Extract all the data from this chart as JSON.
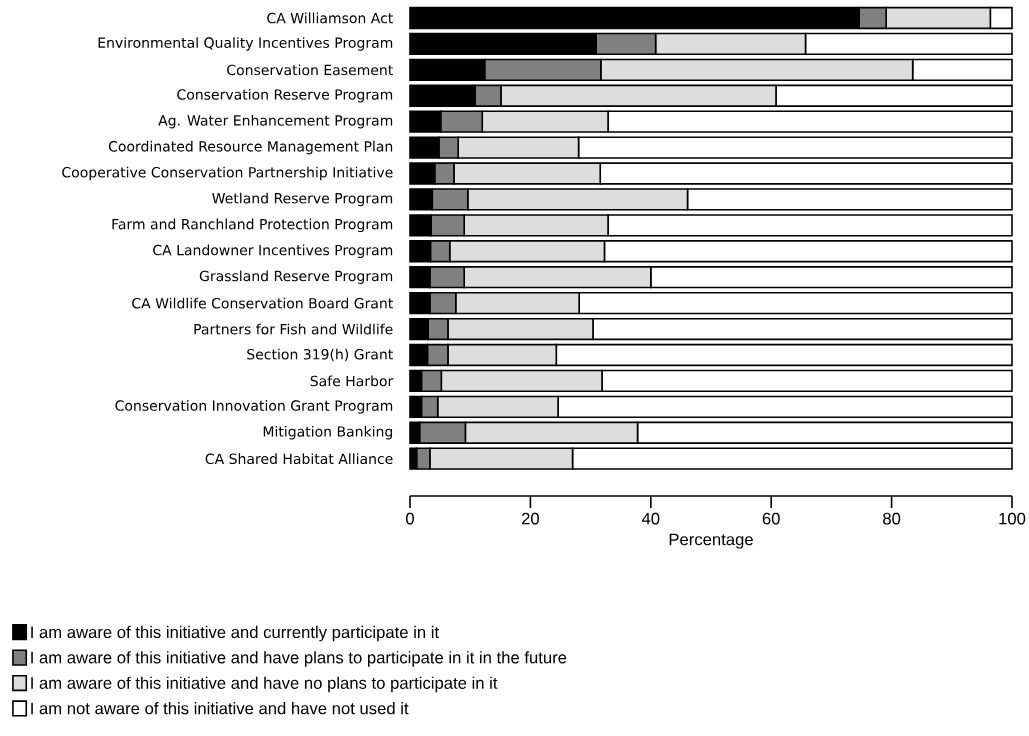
{
  "chart_data": {
    "type": "bar",
    "orientation": "horizontal",
    "stacked": true,
    "xlabel": "Percentage",
    "categories": [
      "CA Williamson Act",
      "Environmental Quality Incentives Program",
      "Conservation Easement",
      "Conservation Reserve Program",
      "Ag. Water Enhancement Program",
      "Coordinated Resource Management Plan",
      "Cooperative Conservation Partnership Initiative",
      "Wetland Reserve Program",
      "Farm and Ranchland Protection Program",
      "CA Landowner Incentives Program",
      "Grassland Reserve Program",
      "CA Wildlife Conservation Board Grant",
      "Partners for Fish and Wildlife",
      "Section 319(h) Grant",
      "Safe Harbor",
      "Conservation Innovation Grant Program",
      "Mitigation Banking",
      "CA Shared Habitat Alliance"
    ],
    "series": [
      {
        "name": "I am aware of this initiative and currently participate in it",
        "color": "#000000",
        "values": [
          74.6,
          30.9,
          12.4,
          10.8,
          5.1,
          4.8,
          4.1,
          3.7,
          3.5,
          3.4,
          3.3,
          3.3,
          3.0,
          2.9,
          1.9,
          1.9,
          1.6,
          1.1
        ]
      },
      {
        "name": "I am aware of this initiative and have plans to participate in it in the future",
        "color": "#808080",
        "values": [
          4.5,
          9.9,
          19.3,
          4.3,
          6.9,
          3.2,
          3.2,
          5.9,
          5.5,
          3.2,
          5.7,
          4.3,
          3.3,
          3.4,
          3.3,
          2.7,
          7.6,
          2.2
        ]
      },
      {
        "name": "I am aware of this initiative and have no plans to participate in it",
        "color": "#dddddd",
        "values": [
          17.3,
          24.9,
          51.8,
          45.7,
          20.9,
          20.0,
          24.3,
          36.5,
          23.9,
          25.7,
          31.0,
          20.5,
          24.1,
          18.0,
          26.7,
          20.0,
          28.6,
          23.7
        ]
      },
      {
        "name": "I am not aware of this initiative and have not used it",
        "color": "#ffffff",
        "values": [
          3.6,
          34.3,
          16.5,
          39.2,
          67.1,
          72.0,
          68.4,
          53.9,
          67.1,
          67.7,
          60.0,
          71.9,
          69.6,
          75.7,
          68.1,
          75.4,
          62.2,
          73.0
        ]
      }
    ],
    "xlim": [
      0,
      100
    ],
    "xticks": [
      0,
      20,
      40,
      60,
      80,
      100
    ],
    "legend": "bottom"
  }
}
